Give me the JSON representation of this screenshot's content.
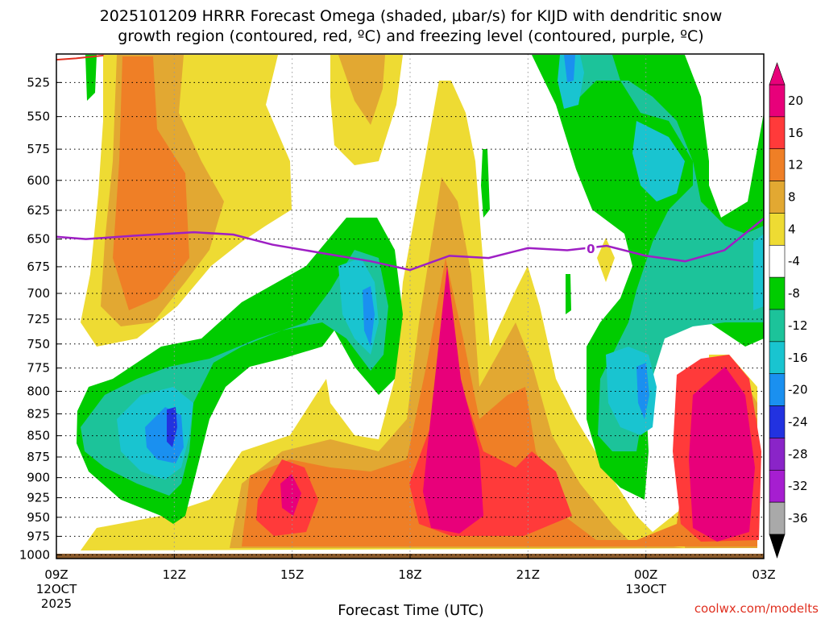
{
  "chart_data": {
    "type": "heatmap",
    "title_line1": "2025101209 HRRR Forecast Omega (shaded, μbar/s) for KIJD with dendritic snow",
    "title_line2": "growth region (contoured, red, ºC) and freezing level (contoured, purple, ºC)",
    "xlabel": "Forecast Time (UTC)",
    "credit": "coolwx.com/modelts",
    "x_ticks": [
      {
        "hours": 0,
        "label": "09Z",
        "date": "12OCT",
        "year": "2025"
      },
      {
        "hours": 3,
        "label": "12Z",
        "date": "",
        "year": ""
      },
      {
        "hours": 6,
        "label": "15Z",
        "date": "",
        "year": ""
      },
      {
        "hours": 9,
        "label": "18Z",
        "date": "",
        "year": ""
      },
      {
        "hours": 12,
        "label": "21Z",
        "date": "",
        "year": ""
      },
      {
        "hours": 15,
        "label": "00Z",
        "date": "13OCT",
        "year": ""
      },
      {
        "hours": 18,
        "label": "03Z",
        "date": "",
        "year": ""
      }
    ],
    "x_range_hours": [
      0,
      18
    ],
    "y_ticks": [
      525,
      550,
      575,
      600,
      625,
      650,
      675,
      700,
      725,
      750,
      775,
      800,
      825,
      850,
      875,
      900,
      925,
      950,
      975,
      1000
    ],
    "y_range_mb": [
      505,
      1005
    ],
    "y_scale": "log",
    "colorbar": {
      "labels": [
        "20",
        "16",
        "12",
        "8",
        "4",
        "-4",
        "-8",
        "-12",
        "-16",
        "-20",
        "-24",
        "-28",
        "-32",
        "-36"
      ],
      "bins": [
        "#e8007a",
        "#ff3a3a",
        "#ef7f26",
        "#e2a832",
        "#eedb33",
        "#ffffff",
        "#00cc00",
        "#1cc39a",
        "#19c4d0",
        "#1a90f0",
        "#2232e0",
        "#8a24c8",
        "#a61ed0",
        "#a9a9a9"
      ]
    },
    "levels": [
      {
        "label": "-24 to -20 (Omega μbar/s)",
        "color": "#2232e0"
      },
      {
        "label": "-20 to -16",
        "color": "#1a90f0"
      },
      {
        "label": "-16 to -12",
        "color": "#19c4d0"
      },
      {
        "label": "-12 to -8",
        "color": "#1cc39a"
      },
      {
        "label": "-8 to -4",
        "color": "#00cc00"
      },
      {
        "label": "4 to 8",
        "color": "#eedb33"
      },
      {
        "label": "8 to 12",
        "color": "#e2a832"
      },
      {
        "label": "12 to 16",
        "color": "#ef7f26"
      },
      {
        "label": "16 to 20",
        "color": "#ff3a3a"
      },
      {
        "label": ">20",
        "color": "#e8007a"
      }
    ],
    "freezing_level": {
      "contour_label": "0",
      "color": "#9e1fc4",
      "points": [
        [
          0,
          648
        ],
        [
          0.75,
          650
        ],
        [
          2,
          647
        ],
        [
          3.5,
          644
        ],
        [
          4.5,
          646
        ],
        [
          5.5,
          655
        ],
        [
          7,
          664
        ],
        [
          8,
          670
        ],
        [
          9,
          678
        ],
        [
          10,
          665
        ],
        [
          11,
          667
        ],
        [
          12,
          658
        ],
        [
          13,
          660
        ],
        [
          14,
          656
        ],
        [
          15,
          665
        ],
        [
          16,
          670
        ],
        [
          17,
          660
        ],
        [
          18,
          632
        ]
      ]
    },
    "dendritic_growth_contour": {
      "color": "#e03020",
      "points": [
        [
          0,
          509
        ],
        [
          0.5,
          508
        ],
        [
          1.2,
          506
        ]
      ]
    },
    "surface_strip_color": "#8a5a2b"
  }
}
